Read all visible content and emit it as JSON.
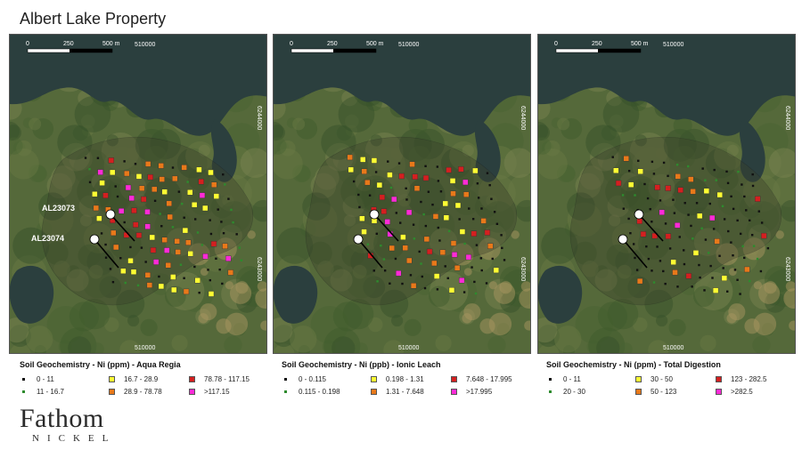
{
  "title": "Albert Lake Property",
  "scale": {
    "label_0": "0",
    "label_250": "250",
    "label_500": "500 m"
  },
  "grid_labels": {
    "top_easting": "510000",
    "bottom_easting": "510000",
    "northing_upper": "6244000",
    "northing_lower": "6243000"
  },
  "drill_holes": {
    "upper": "AL23073",
    "lower": "AL23074"
  },
  "panels": [
    {
      "legend_title": "Soil Geochemistry - Ni (ppm) - Aqua Regia",
      "classes": [
        {
          "label": "0 - 11",
          "color": "#111111",
          "marker": "dot"
        },
        {
          "label": "11 - 16.7",
          "color": "#2e8b2e",
          "marker": "dot"
        },
        {
          "label": "16.7 - 28.9",
          "color": "#ffff33",
          "marker": "square"
        },
        {
          "label": "28.9 - 78.78",
          "color": "#e8791a",
          "marker": "square"
        },
        {
          "label": "78.78 - 117.15",
          "color": "#d42020",
          "marker": "square"
        },
        {
          "label": ">117.15",
          "color": "#ff2bd6",
          "marker": "square"
        }
      ]
    },
    {
      "legend_title": "Soil Geochemistry - Ni (ppb) - Ionic Leach",
      "classes": [
        {
          "label": "0 - 0.115",
          "color": "#111111",
          "marker": "dot"
        },
        {
          "label": "0.115 - 0.198",
          "color": "#2e8b2e",
          "marker": "dot"
        },
        {
          "label": "0.198 - 1.31",
          "color": "#ffff33",
          "marker": "square"
        },
        {
          "label": "1.31 - 7.648",
          "color": "#e8791a",
          "marker": "square"
        },
        {
          "label": "7.648 - 17.995",
          "color": "#d42020",
          "marker": "square"
        },
        {
          "label": ">17.995",
          "color": "#ff2bd6",
          "marker": "square"
        }
      ]
    },
    {
      "legend_title": "Soil Geochemistry - Ni (ppm) - Total Digestion",
      "classes": [
        {
          "label": "0 - 11",
          "color": "#111111",
          "marker": "dot"
        },
        {
          "label": "20 - 30",
          "color": "#2e8b2e",
          "marker": "dot"
        },
        {
          "label": "30 - 50",
          "color": "#ffff33",
          "marker": "square"
        },
        {
          "label": "50 - 123",
          "color": "#e8791a",
          "marker": "square"
        },
        {
          "label": "123 - 282.5",
          "color": "#d42020",
          "marker": "square"
        },
        {
          "label": ">282.5",
          "color": "#ff2bd6",
          "marker": "square"
        }
      ]
    }
  ],
  "logo": {
    "word": "Fathom",
    "sub": "NICKEL"
  }
}
